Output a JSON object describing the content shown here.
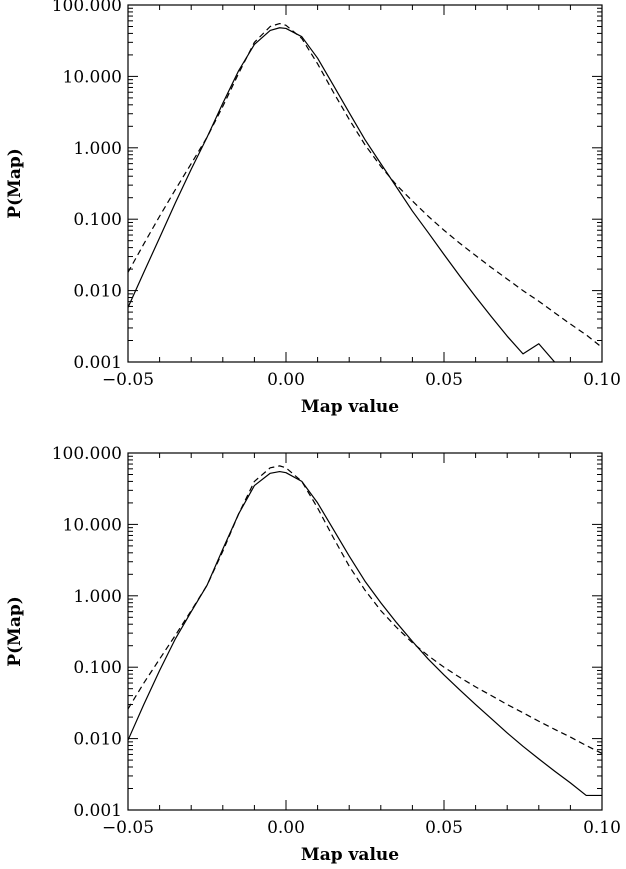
{
  "chart_data": [
    {
      "type": "line",
      "xlabel": "Map value",
      "ylabel": "P(Map)",
      "xlim": [
        -0.05,
        0.1
      ],
      "ylim": [
        0.001,
        100
      ],
      "yscale": "log",
      "grid": false,
      "x_ticks": [
        -0.05,
        0.0,
        0.05,
        0.1
      ],
      "x_tick_labels": [
        "−0.05",
        "0.00",
        "0.05",
        "0.10"
      ],
      "y_ticks": [
        0.001,
        0.01,
        0.1,
        1,
        10,
        100
      ],
      "y_tick_labels": [
        "0.001",
        "0.010",
        "0.100",
        "1.000",
        "10.000",
        "100.000"
      ],
      "series": [
        {
          "style": "solid",
          "x": [
            -0.05,
            -0.045,
            -0.04,
            -0.035,
            -0.03,
            -0.025,
            -0.02,
            -0.015,
            -0.01,
            -0.005,
            -0.002,
            0.0,
            0.005,
            0.01,
            0.015,
            0.02,
            0.025,
            0.03,
            0.035,
            0.04,
            0.045,
            0.05,
            0.055,
            0.06,
            0.065,
            0.07,
            0.075,
            0.08,
            0.085
          ],
          "y": [
            0.0058,
            0.018,
            0.055,
            0.17,
            0.5,
            1.4,
            4.2,
            12,
            28,
            44,
            48,
            47,
            36,
            18,
            7.5,
            3.1,
            1.3,
            0.6,
            0.28,
            0.13,
            0.065,
            0.032,
            0.016,
            0.0082,
            0.0043,
            0.0023,
            0.0013,
            0.0018,
            0.001
          ]
        },
        {
          "style": "dashed",
          "x": [
            -0.05,
            -0.045,
            -0.04,
            -0.035,
            -0.03,
            -0.025,
            -0.02,
            -0.015,
            -0.01,
            -0.005,
            -0.002,
            0.0,
            0.005,
            0.01,
            0.015,
            0.02,
            0.025,
            0.03,
            0.035,
            0.04,
            0.045,
            0.05,
            0.055,
            0.06,
            0.065,
            0.07,
            0.075,
            0.08,
            0.085,
            0.09,
            0.095,
            0.1
          ],
          "y": [
            0.018,
            0.045,
            0.11,
            0.26,
            0.6,
            1.4,
            3.8,
            11,
            30,
            50,
            55,
            52,
            34,
            15,
            6,
            2.5,
            1.1,
            0.55,
            0.3,
            0.18,
            0.11,
            0.07,
            0.046,
            0.031,
            0.021,
            0.0145,
            0.01,
            0.0071,
            0.0049,
            0.0034,
            0.0024,
            0.0016
          ]
        }
      ]
    },
    {
      "type": "line",
      "xlabel": "Map value",
      "ylabel": "P(Map)",
      "xlim": [
        -0.05,
        0.1
      ],
      "ylim": [
        0.001,
        100
      ],
      "yscale": "log",
      "grid": false,
      "x_ticks": [
        -0.05,
        0.0,
        0.05,
        0.1
      ],
      "x_tick_labels": [
        "−0.05",
        "0.00",
        "0.05",
        "0.10"
      ],
      "y_ticks": [
        0.001,
        0.01,
        0.1,
        1,
        10,
        100
      ],
      "y_tick_labels": [
        "0.001",
        "0.010",
        "0.100",
        "1.000",
        "10.000",
        "100.000"
      ],
      "series": [
        {
          "style": "solid",
          "x": [
            -0.05,
            -0.045,
            -0.04,
            -0.035,
            -0.03,
            -0.025,
            -0.02,
            -0.015,
            -0.01,
            -0.005,
            -0.002,
            0.0,
            0.005,
            0.01,
            0.015,
            0.02,
            0.025,
            0.03,
            0.035,
            0.04,
            0.045,
            0.05,
            0.055,
            0.06,
            0.065,
            0.07,
            0.075,
            0.08,
            0.085,
            0.09,
            0.095,
            0.1
          ],
          "y": [
            0.0095,
            0.03,
            0.09,
            0.25,
            0.6,
            1.4,
            4.5,
            14,
            35,
            52,
            55,
            53,
            40,
            20,
            8.5,
            3.6,
            1.6,
            0.8,
            0.42,
            0.23,
            0.13,
            0.078,
            0.048,
            0.03,
            0.019,
            0.012,
            0.0078,
            0.0052,
            0.0035,
            0.0024,
            0.0016,
            0.0016
          ]
        },
        {
          "style": "dashed",
          "x": [
            -0.05,
            -0.045,
            -0.04,
            -0.035,
            -0.03,
            -0.025,
            -0.02,
            -0.015,
            -0.01,
            -0.005,
            -0.002,
            0.0,
            0.005,
            0.01,
            0.015,
            0.02,
            0.025,
            0.03,
            0.035,
            0.04,
            0.045,
            0.05,
            0.055,
            0.06,
            0.065,
            0.07,
            0.075,
            0.08,
            0.085,
            0.09,
            0.095,
            0.1
          ],
          "y": [
            0.026,
            0.06,
            0.13,
            0.28,
            0.62,
            1.4,
            4.2,
            14,
            40,
            62,
            66,
            62,
            40,
            17,
            6.5,
            2.6,
            1.2,
            0.62,
            0.36,
            0.22,
            0.145,
            0.1,
            0.072,
            0.053,
            0.04,
            0.03,
            0.023,
            0.0175,
            0.0135,
            0.0105,
            0.008,
            0.0062
          ]
        }
      ]
    }
  ]
}
